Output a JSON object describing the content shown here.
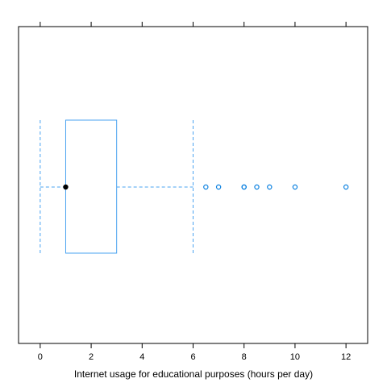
{
  "chart_data": {
    "type": "box",
    "orientation": "horizontal",
    "title": "",
    "xlabel": "Internet usage for educational purposes (hours per day)",
    "ylabel": "",
    "xlim": [
      -0.85,
      12.85
    ],
    "xticks": [
      0,
      2,
      4,
      6,
      8,
      10,
      12
    ],
    "tick_labels": [
      "0",
      "2",
      "4",
      "6",
      "8",
      "10",
      "12"
    ],
    "grid": false,
    "box": {
      "whisker_low": 0,
      "q1": 1,
      "median": 1,
      "q3": 3,
      "whisker_high": 6
    },
    "outliers": [
      6.5,
      7,
      8,
      8,
      8.5,
      9,
      10,
      12
    ]
  },
  "colors": {
    "box": "#4aa3f0",
    "outlier": "#0a80e0",
    "median": "#000000",
    "frame": "#000000"
  }
}
